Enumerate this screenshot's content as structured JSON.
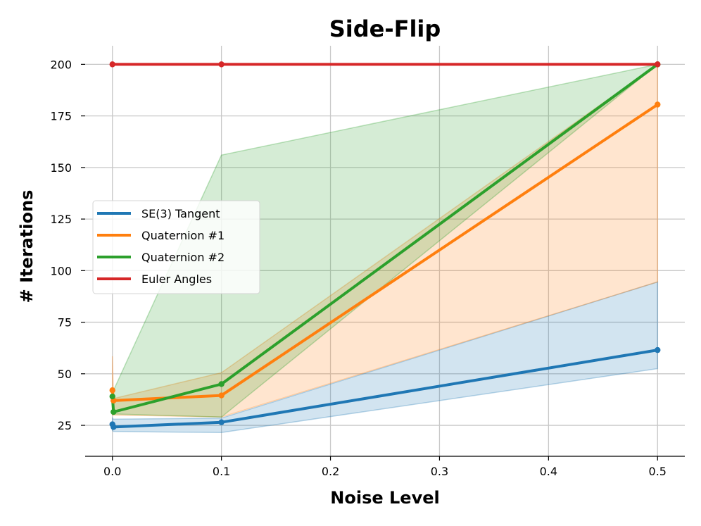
{
  "chart_data": {
    "type": "line",
    "title": "Side-Flip",
    "xlabel": "Noise Level",
    "ylabel": "# Iterations",
    "xlim": [
      -0.025,
      0.525
    ],
    "ylim": [
      10,
      209
    ],
    "xticks": [
      0.0,
      0.1,
      0.2,
      0.3,
      0.4,
      0.5
    ],
    "xtick_labels": [
      "0.0",
      "0.1",
      "0.2",
      "0.3",
      "0.4",
      "0.5"
    ],
    "yticks": [
      25,
      50,
      75,
      100,
      125,
      150,
      175,
      200
    ],
    "ytick_labels": [
      "25",
      "50",
      "75",
      "100",
      "125",
      "150",
      "175",
      "200"
    ],
    "grid": true,
    "legend_position": "center-left",
    "series": [
      {
        "name": "SE(3) Tangent",
        "color": "#1f77b4",
        "x": [
          0.0,
          0.001,
          0.1,
          0.5
        ],
        "y": [
          25.5,
          24.2,
          26.5,
          61.5
        ],
        "lower": [
          22.5,
          22.0,
          21.5,
          52.5
        ],
        "upper": [
          28.5,
          28.0,
          28.5,
          94.5
        ]
      },
      {
        "name": "Quaternion #1",
        "color": "#ff7f0e",
        "x": [
          0.0,
          0.001,
          0.1,
          0.5
        ],
        "y": [
          42.0,
          37.0,
          39.5,
          180.5
        ],
        "lower": [
          30.0,
          30.0,
          29.0,
          94.5
        ],
        "upper": [
          58.5,
          38.0,
          50.5,
          200.0
        ]
      },
      {
        "name": "Quaternion #2",
        "color": "#2ca02c",
        "x": [
          0.0,
          0.001,
          0.1,
          0.5
        ],
        "y": [
          39.0,
          31.5,
          45.0,
          200.0
        ],
        "lower": [
          30.5,
          30.5,
          29.0,
          200.0
        ],
        "upper": [
          42.0,
          42.0,
          156.0,
          200.0
        ]
      },
      {
        "name": "Euler Angles",
        "color": "#d62728",
        "x": [
          0.0,
          0.1,
          0.5
        ],
        "y": [
          200.0,
          200.0,
          200.0
        ],
        "lower": [
          200.0,
          200.0,
          200.0
        ],
        "upper": [
          200.0,
          200.0,
          200.0
        ]
      }
    ]
  }
}
